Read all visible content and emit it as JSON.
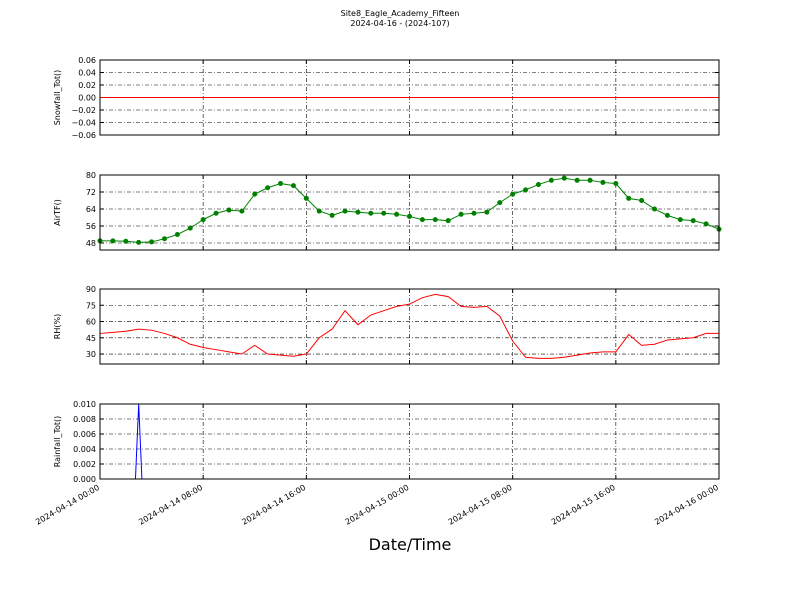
{
  "title": "Site8_Eagle_Academy_Fifteen",
  "subtitle": "2024-04-16 - (2024-107)",
  "xlabel": "Date/Time",
  "chart_data": [
    {
      "type": "line",
      "ylabel": "Snowfall_Tot()",
      "color": "#ff0000",
      "marker": false,
      "x": [
        "2024-04-14 00:00",
        "2024-04-16 00:00"
      ],
      "values": [
        0,
        0
      ],
      "xlim": [
        "2024-04-14 00:00",
        "2024-04-16 00:00"
      ],
      "ylim": [
        -0.06,
        0.06
      ],
      "yticks": [
        {
          "value": -0.06,
          "label": "−0.06"
        },
        {
          "value": -0.04,
          "label": "−0.04"
        },
        {
          "value": -0.02,
          "label": "−0.02"
        },
        {
          "value": 0,
          "label": "0.00"
        },
        0.02,
        0.04,
        0.06
      ],
      "grid": true
    },
    {
      "type": "line",
      "ylabel": "AirTF()",
      "color": "#008000",
      "marker": true,
      "x": [
        "2024-04-14 00:00",
        "2024-04-14 01:00",
        "2024-04-14 02:00",
        "2024-04-14 03:00",
        "2024-04-14 04:00",
        "2024-04-14 05:00",
        "2024-04-14 06:00",
        "2024-04-14 07:00",
        "2024-04-14 08:00",
        "2024-04-14 09:00",
        "2024-04-14 10:00",
        "2024-04-14 11:00",
        "2024-04-14 12:00",
        "2024-04-14 13:00",
        "2024-04-14 14:00",
        "2024-04-14 15:00",
        "2024-04-14 16:00",
        "2024-04-14 17:00",
        "2024-04-14 18:00",
        "2024-04-14 19:00",
        "2024-04-14 20:00",
        "2024-04-14 21:00",
        "2024-04-14 22:00",
        "2024-04-14 23:00",
        "2024-04-15 00:00",
        "2024-04-15 01:00",
        "2024-04-15 02:00",
        "2024-04-15 03:00",
        "2024-04-15 04:00",
        "2024-04-15 05:00",
        "2024-04-15 06:00",
        "2024-04-15 07:00",
        "2024-04-15 08:00",
        "2024-04-15 09:00",
        "2024-04-15 10:00",
        "2024-04-15 11:00",
        "2024-04-15 12:00",
        "2024-04-15 13:00",
        "2024-04-15 14:00",
        "2024-04-15 15:00",
        "2024-04-15 16:00",
        "2024-04-15 17:00",
        "2024-04-15 18:00",
        "2024-04-15 19:00",
        "2024-04-15 20:00",
        "2024-04-15 21:00",
        "2024-04-15 22:00",
        "2024-04-15 23:00",
        "2024-04-16 00:00"
      ],
      "values": [
        49,
        49,
        48.8,
        48.3,
        48.5,
        50,
        52,
        55,
        59,
        62,
        63.5,
        63,
        71,
        74,
        76,
        75,
        69,
        63,
        61,
        63,
        62.5,
        62,
        62,
        61.5,
        60.5,
        59,
        59,
        58.5,
        61.5,
        62,
        62.5,
        67,
        71,
        73,
        75.5,
        77.5,
        78.5,
        77.5,
        77.5,
        76.5,
        76,
        69,
        68,
        64,
        61,
        59,
        58.5,
        57,
        54.5
      ],
      "xlim": [
        "2024-04-14 00:00",
        "2024-04-16 00:00"
      ],
      "ylim": [
        44.7,
        80
      ],
      "yticks": [
        48,
        56,
        64,
        72,
        80
      ],
      "grid": true
    },
    {
      "type": "line",
      "ylabel": "RH(%)",
      "color": "#ff0000",
      "marker": false,
      "x": [
        "2024-04-14 00:00",
        "2024-04-14 01:00",
        "2024-04-14 02:00",
        "2024-04-14 03:00",
        "2024-04-14 04:00",
        "2024-04-14 05:00",
        "2024-04-14 06:00",
        "2024-04-14 07:00",
        "2024-04-14 08:00",
        "2024-04-14 09:00",
        "2024-04-14 10:00",
        "2024-04-14 11:00",
        "2024-04-14 12:00",
        "2024-04-14 13:00",
        "2024-04-14 14:00",
        "2024-04-14 15:00",
        "2024-04-14 16:00",
        "2024-04-14 17:00",
        "2024-04-14 18:00",
        "2024-04-14 19:00",
        "2024-04-14 20:00",
        "2024-04-14 21:00",
        "2024-04-14 22:00",
        "2024-04-14 23:00",
        "2024-04-15 00:00",
        "2024-04-15 01:00",
        "2024-04-15 02:00",
        "2024-04-15 03:00",
        "2024-04-15 04:00",
        "2024-04-15 05:00",
        "2024-04-15 06:00",
        "2024-04-15 07:00",
        "2024-04-15 08:00",
        "2024-04-15 09:00",
        "2024-04-15 10:00",
        "2024-04-15 11:00",
        "2024-04-15 12:00",
        "2024-04-15 13:00",
        "2024-04-15 14:00",
        "2024-04-15 15:00",
        "2024-04-15 16:00",
        "2024-04-15 17:00",
        "2024-04-15 18:00",
        "2024-04-15 19:00",
        "2024-04-15 20:00",
        "2024-04-15 21:00",
        "2024-04-15 22:00",
        "2024-04-15 23:00",
        "2024-04-16 00:00"
      ],
      "values": [
        49,
        50,
        51,
        53,
        52,
        49,
        45,
        39,
        36,
        34,
        32,
        30,
        38,
        30,
        29,
        28,
        30,
        45,
        53,
        70,
        57,
        66,
        70,
        74,
        76,
        82,
        85,
        83,
        74,
        73,
        74,
        65,
        42,
        27,
        26,
        26,
        27,
        29,
        31,
        32,
        32,
        48,
        38,
        39,
        43,
        44,
        45,
        49,
        49
      ],
      "xlim": [
        "2024-04-14 00:00",
        "2024-04-16 00:00"
      ],
      "ylim": [
        20.8,
        90
      ],
      "yticks": [
        30,
        45,
        60,
        75,
        90
      ],
      "grid": true
    },
    {
      "type": "line",
      "ylabel": "Rainfall_Tot()",
      "color": "#0000ff",
      "marker": false,
      "x": [
        "2024-04-14 00:00",
        "2024-04-14 02:45",
        "2024-04-14 03:00",
        "2024-04-14 03:15",
        "2024-04-16 00:00"
      ],
      "values": [
        0,
        0,
        0.01,
        0,
        0
      ],
      "xlim": [
        "2024-04-14 00:00",
        "2024-04-16 00:00"
      ],
      "xticks": [
        "2024-04-14 00:00",
        "2024-04-14 08:00",
        "2024-04-14 16:00",
        "2024-04-15 00:00",
        "2024-04-15 08:00",
        "2024-04-15 16:00",
        "2024-04-16 00:00"
      ],
      "ylim": [
        0,
        0.01
      ],
      "yticks": [
        {
          "value": 0,
          "label": "0.000"
        },
        0.002,
        0.004,
        0.006,
        0.008,
        {
          "value": 0.01,
          "label": "0.010"
        }
      ],
      "grid": true
    }
  ]
}
